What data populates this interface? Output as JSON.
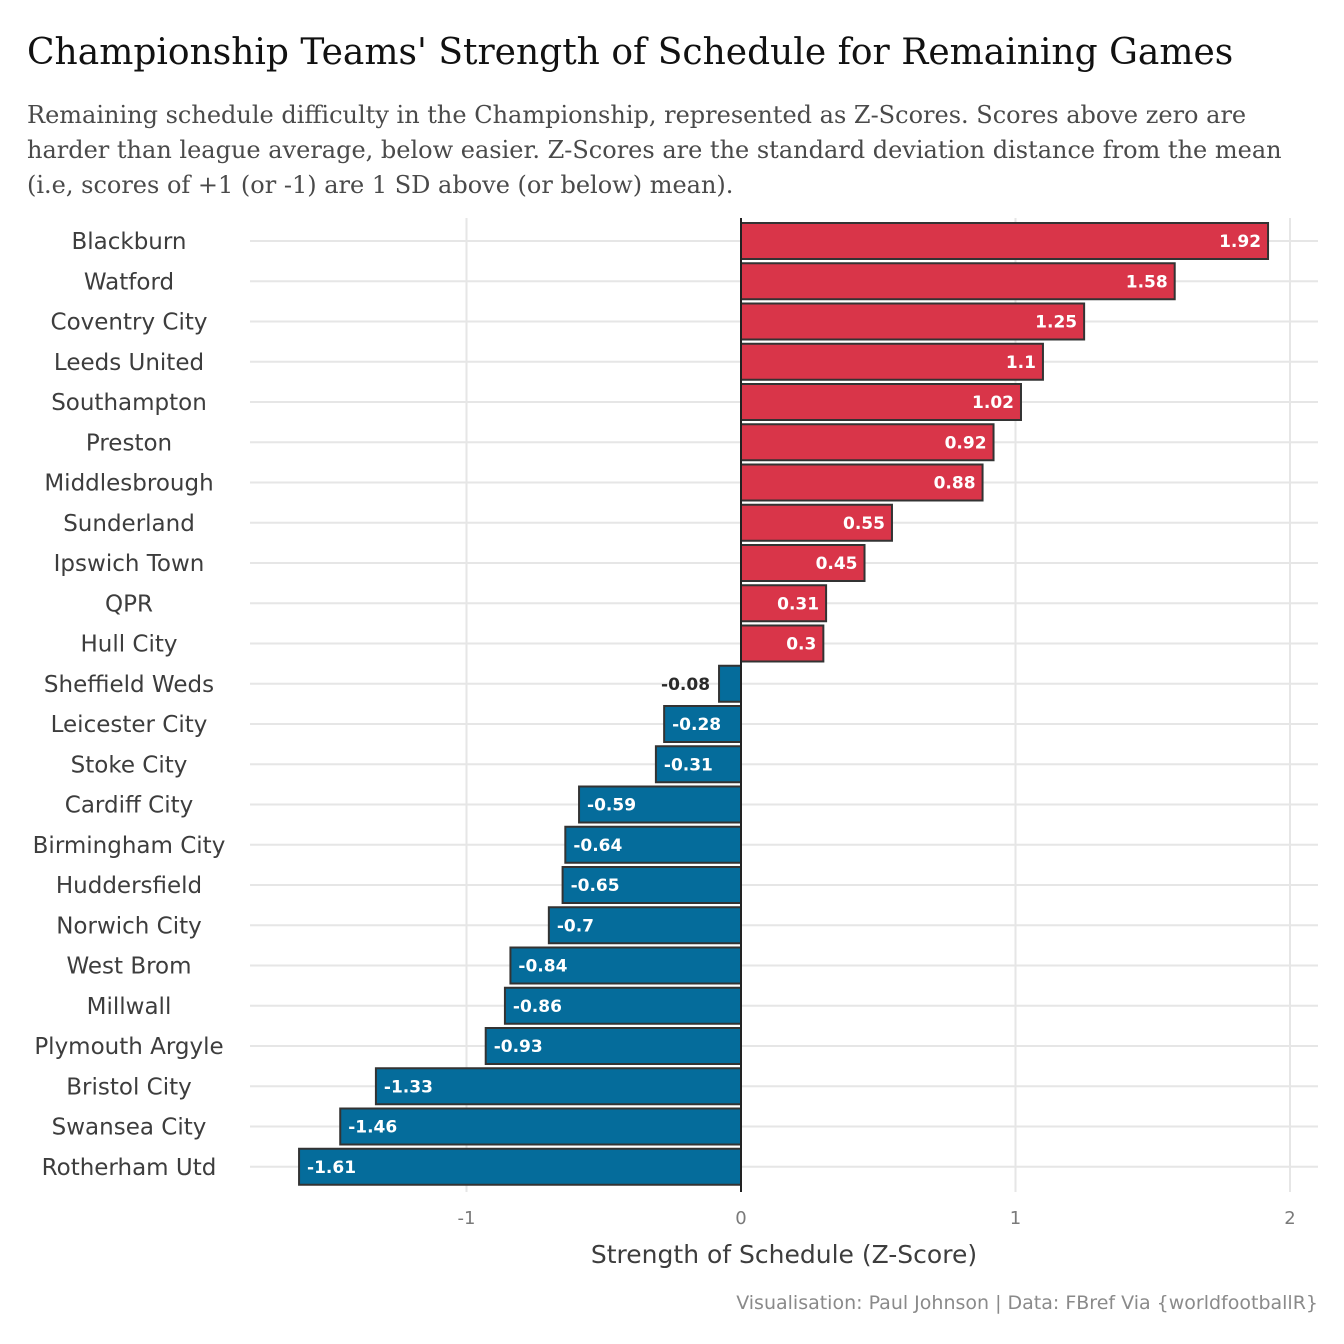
{
  "chart_data": {
    "type": "bar",
    "orientation": "horizontal",
    "title": "Championship Teams' Strength of Schedule for Remaining Games",
    "subtitle": "Remaining schedule difficulty in the Championship, represented as Z-Scores. Scores above zero are harder than league average, below easier. Z-Scores are the standard deviation distance from the mean (i.e, scores of +1 (or -1) are 1 SD above (or below) mean).",
    "xlabel": "Strength of Schedule (Z-Score)",
    "ylabel": "",
    "xlim": [
      -1.8,
      2.05
    ],
    "xticks": [
      -1,
      0,
      1,
      2
    ],
    "xtick_labels": [
      "-1",
      "0",
      "1",
      "2"
    ],
    "grid": true,
    "legend": "none",
    "categories": [
      "Blackburn",
      "Watford",
      "Coventry City",
      "Leeds United",
      "Southampton",
      "Preston",
      "Middlesbrough",
      "Sunderland",
      "Ipswich Town",
      "QPR",
      "Hull City",
      "Sheffield Weds",
      "Leicester City",
      "Stoke City",
      "Cardiff City",
      "Birmingham City",
      "Huddersfield",
      "Norwich City",
      "West Brom",
      "Millwall",
      "Plymouth Argyle",
      "Bristol City",
      "Swansea City",
      "Rotherham Utd"
    ],
    "values": [
      1.92,
      1.58,
      1.25,
      1.1,
      1.02,
      0.92,
      0.88,
      0.55,
      0.45,
      0.31,
      0.3,
      -0.08,
      -0.28,
      -0.31,
      -0.59,
      -0.64,
      -0.65,
      -0.7,
      -0.84,
      -0.86,
      -0.93,
      -1.33,
      -1.46,
      -1.61
    ],
    "value_labels": [
      "1.92",
      "1.58",
      "1.25",
      "1.1",
      "1.02",
      "0.92",
      "0.88",
      "0.55",
      "0.45",
      "0.31",
      "0.3",
      "-0.08",
      "-0.28",
      "-0.31",
      "-0.59",
      "-0.64",
      "-0.65",
      "-0.7",
      "-0.84",
      "-0.86",
      "-0.93",
      "-1.33",
      "-1.46",
      "-1.61"
    ],
    "colors": {
      "positive": "#d93549",
      "negative": "#056c9b",
      "bar_outline": "#333333",
      "grid": "#e6e6e6",
      "zero_line": "#222222"
    },
    "caption": "Visualisation: Paul Johnson  |  Data: FBref Via {worldfootballR}"
  }
}
